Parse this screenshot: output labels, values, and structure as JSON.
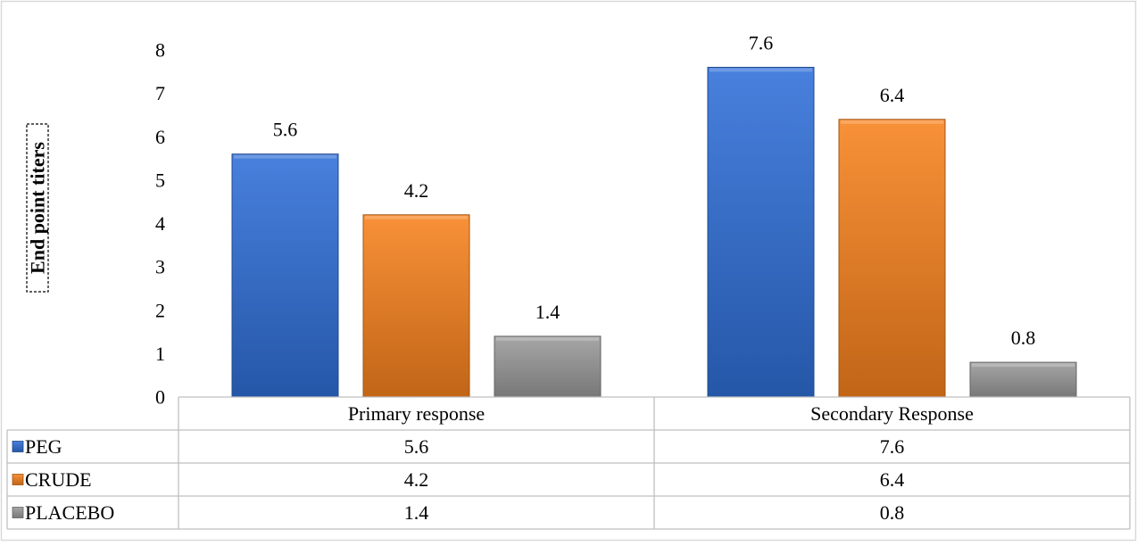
{
  "chart_data": {
    "type": "bar",
    "ylabel": "End point titers",
    "ylim": [
      0,
      8
    ],
    "yticks": [
      "0",
      "1",
      "2",
      "3",
      "4",
      "5",
      "6",
      "7",
      "8"
    ],
    "categories": [
      "Primary response",
      "Secondary Response"
    ],
    "series": [
      {
        "name": "PEG",
        "values": [
          5.6,
          7.6
        ],
        "labels": [
          "5.6",
          "7.6"
        ],
        "color": "#2f6fd8"
      },
      {
        "name": "CRUDE",
        "values": [
          4.2,
          6.4
        ],
        "labels": [
          "4.2",
          "6.4"
        ],
        "color": "#f7821d"
      },
      {
        "name": "PLACEBO",
        "values": [
          1.4,
          0.8
        ],
        "labels": [
          "1.4",
          "0.8"
        ],
        "color": "#9a9a9a"
      }
    ],
    "grid": false,
    "legend": "data-table"
  }
}
